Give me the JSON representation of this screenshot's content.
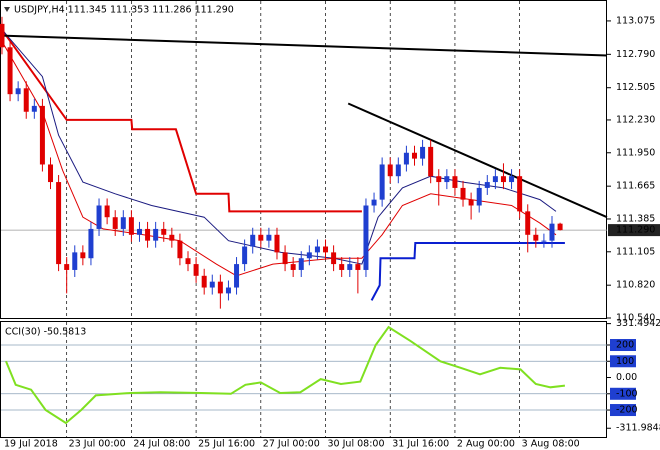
{
  "chart_data": [
    {
      "type": "candlestick",
      "title": "USDJPY,H4  111.345 111.353 111.286 111.290",
      "up_color": "#1f3fd0",
      "down_color": "#e00000",
      "open": [
        113.05,
        112.85,
        112.45,
        112.5,
        112.3,
        112.35,
        111.85,
        111.7,
        111.0,
        110.95,
        111.1,
        111.05,
        111.3,
        111.5,
        111.4,
        111.3,
        111.4,
        111.25,
        111.3,
        111.2,
        111.3,
        111.25,
        111.2,
        111.05,
        111.0,
        110.9,
        110.8,
        110.85,
        110.75,
        110.8,
        111.0,
        111.15,
        111.25,
        111.2,
        111.25,
        111.1,
        111.0,
        110.95,
        111.05,
        111.1,
        111.15,
        111.1,
        111.0,
        110.95,
        111.0,
        110.95,
        111.5,
        111.55,
        111.85,
        111.75,
        111.85,
        111.95,
        111.9,
        112.0,
        111.75,
        111.7,
        111.75,
        111.65,
        111.55,
        111.5,
        111.65,
        111.7,
        111.75,
        111.7,
        111.75,
        111.45,
        111.25,
        111.2,
        111.2,
        111.345
      ],
      "high": [
        113.11,
        112.91,
        112.56,
        112.56,
        112.41,
        112.41,
        111.91,
        111.76,
        111.06,
        111.16,
        111.16,
        111.36,
        111.56,
        111.56,
        111.46,
        111.46,
        111.46,
        111.36,
        111.36,
        111.36,
        111.36,
        111.31,
        111.26,
        111.11,
        111.06,
        110.96,
        110.91,
        110.91,
        110.86,
        111.06,
        111.21,
        111.31,
        111.31,
        111.31,
        111.31,
        111.16,
        111.06,
        111.11,
        111.16,
        111.21,
        111.21,
        111.16,
        111.06,
        111.06,
        111.06,
        111.56,
        111.61,
        111.91,
        111.91,
        111.91,
        112.01,
        112.01,
        112.06,
        112.06,
        111.81,
        111.81,
        111.81,
        111.71,
        111.61,
        111.71,
        111.76,
        111.81,
        111.86,
        111.81,
        111.81,
        111.51,
        111.31,
        111.26,
        111.41,
        111.353
      ],
      "low": [
        112.79,
        112.39,
        112.39,
        112.24,
        112.24,
        111.79,
        111.64,
        110.94,
        110.75,
        110.89,
        110.99,
        110.99,
        111.24,
        111.34,
        111.24,
        111.24,
        111.19,
        111.19,
        111.14,
        111.14,
        111.19,
        111.14,
        110.99,
        110.94,
        110.84,
        110.74,
        110.74,
        110.62,
        110.69,
        110.74,
        110.94,
        111.09,
        111.14,
        111.14,
        111.04,
        110.94,
        110.89,
        110.89,
        110.99,
        111.04,
        111.04,
        110.94,
        110.89,
        110.89,
        110.75,
        110.89,
        111.44,
        111.49,
        111.69,
        111.69,
        111.79,
        111.84,
        111.84,
        111.69,
        111.5,
        111.64,
        111.59,
        111.49,
        111.38,
        111.44,
        111.59,
        111.64,
        111.64,
        111.64,
        111.39,
        111.1,
        111.14,
        111.14,
        111.14,
        111.286
      ],
      "close": [
        112.85,
        112.45,
        112.5,
        112.3,
        112.35,
        111.85,
        111.7,
        111.0,
        110.95,
        111.1,
        111.05,
        111.3,
        111.5,
        111.4,
        111.3,
        111.4,
        111.25,
        111.3,
        111.2,
        111.3,
        111.25,
        111.2,
        111.05,
        111.0,
        110.9,
        110.8,
        110.85,
        110.75,
        110.8,
        111.0,
        111.15,
        111.25,
        111.2,
        111.25,
        111.1,
        111.0,
        110.95,
        111.05,
        111.1,
        111.15,
        111.1,
        111.0,
        110.95,
        111.0,
        110.95,
        111.5,
        111.55,
        111.85,
        111.75,
        111.85,
        111.95,
        111.9,
        112.0,
        111.75,
        111.7,
        111.75,
        111.65,
        111.55,
        111.5,
        111.65,
        111.7,
        111.75,
        111.7,
        111.75,
        111.45,
        111.25,
        111.2,
        111.2,
        111.345,
        111.29
      ],
      "xlim": [
        -0.12,
        74.8
      ],
      "xticks": [
        {
          "value": 0,
          "label": "19 Jul 2018"
        },
        {
          "value": 8,
          "label": "23 Jul 00:00"
        },
        {
          "value": 16,
          "label": "24 Jul 08:00"
        },
        {
          "value": 24,
          "label": "25 Jul 16:00"
        },
        {
          "value": 32,
          "label": "27 Jul 00:00"
        },
        {
          "value": 40,
          "label": "30 Jul 08:00"
        },
        {
          "value": 48,
          "label": "31 Jul 16:00"
        },
        {
          "value": 56,
          "label": "2 Aug 00:00"
        },
        {
          "value": 64,
          "label": "3 Aug 08:00"
        }
      ],
      "ylim": [
        110.54,
        113.245
      ],
      "yticks": [
        113.075,
        {
          "value": 112.79,
          "label": "112.790"
        },
        112.505,
        {
          "value": 112.23,
          "label": "112.230"
        },
        {
          "value": 111.95,
          "label": "111.950"
        },
        111.665,
        111.385,
        111.105,
        {
          "value": 110.82,
          "label": "110.820"
        },
        {
          "value": 110.54,
          "label": "110.540"
        }
      ],
      "last_price": {
        "value": 111.29,
        "label": "111.290"
      },
      "overlays": [
        {
          "color": "#e00000",
          "width": 2,
          "x": [
            0,
            8,
            16,
            16.1,
            21.5,
            24,
            28,
            28.1,
            44.5
          ],
          "values": [
            113.0,
            112.23,
            112.23,
            112.15,
            112.15,
            111.6,
            111.6,
            111.45,
            111.45
          ]
        },
        {
          "color": "#0a1fd0",
          "width": 2,
          "x": [
            45.7,
            46.7,
            46.8,
            51,
            51.1,
            69.6
          ],
          "values": [
            110.69,
            110.82,
            111.05,
            111.05,
            111.18,
            111.18
          ]
        },
        {
          "color": "#1a1a80",
          "width": 1,
          "x": [
            0,
            5,
            7,
            10,
            14,
            18.5,
            25,
            28,
            34.5,
            41,
            44.5,
            46.5,
            49.5,
            53,
            57,
            62,
            66.5,
            68.5
          ],
          "values": [
            113.0,
            112.6,
            112.1,
            111.7,
            111.6,
            111.5,
            111.4,
            111.2,
            111.1,
            111.05,
            111.0,
            111.4,
            111.65,
            111.75,
            111.7,
            111.65,
            111.55,
            111.45
          ]
        },
        {
          "color": "#e00000",
          "width": 1,
          "x": [
            0,
            5,
            7.5,
            10,
            12.5,
            17.5,
            22,
            26.5,
            29,
            33.5,
            41,
            44.5,
            47,
            49.5,
            53,
            58,
            63,
            66.5,
            68.5
          ],
          "values": [
            112.9,
            112.3,
            111.8,
            111.4,
            111.3,
            111.25,
            111.2,
            111.0,
            110.9,
            111.0,
            111.05,
            111.05,
            111.25,
            111.5,
            111.6,
            111.55,
            111.5,
            111.35,
            111.25
          ]
        },
        {
          "color": "#000000",
          "width": 2,
          "x": [
            0,
            74.8
          ],
          "values": [
            112.95,
            112.78
          ]
        },
        {
          "color": "#000000",
          "width": 2,
          "x": [
            42.8,
            74.8
          ],
          "values": [
            112.37,
            111.4
          ]
        }
      ]
    },
    {
      "type": "line",
      "title": "CCI(30) -50.5813",
      "color": "#7fe020",
      "x": [
        0.5,
        1.7,
        3.6,
        5.4,
        7.9,
        9.8,
        11.6,
        15.9,
        19.6,
        24.6,
        28.3,
        30.1,
        32,
        34.4,
        36.9,
        39.4,
        41.9,
        44.3,
        46.2,
        47.8,
        50.5,
        54.2,
        56.7,
        59.1,
        61.6,
        64.1,
        66,
        67.8,
        69.6
      ],
      "values": [
        100,
        -45,
        -75,
        -200,
        -280,
        -200,
        -110,
        -95,
        -90,
        -95,
        -100,
        -45,
        -30,
        -95,
        -90,
        -10,
        -40,
        -25,
        200,
        310,
        225,
        100,
        60,
        20,
        60,
        50,
        -40,
        -60,
        -50
      ],
      "xlim": [
        -0.12,
        74.8
      ],
      "ylim": [
        -372,
        341.5
      ],
      "yticks": [
        331.4942,
        200,
        100,
        {
          "value": 0,
          "label": "0.00"
        },
        -100,
        -200,
        -311.9848
      ],
      "levels": [
        200,
        100,
        -100,
        -200
      ]
    }
  ]
}
